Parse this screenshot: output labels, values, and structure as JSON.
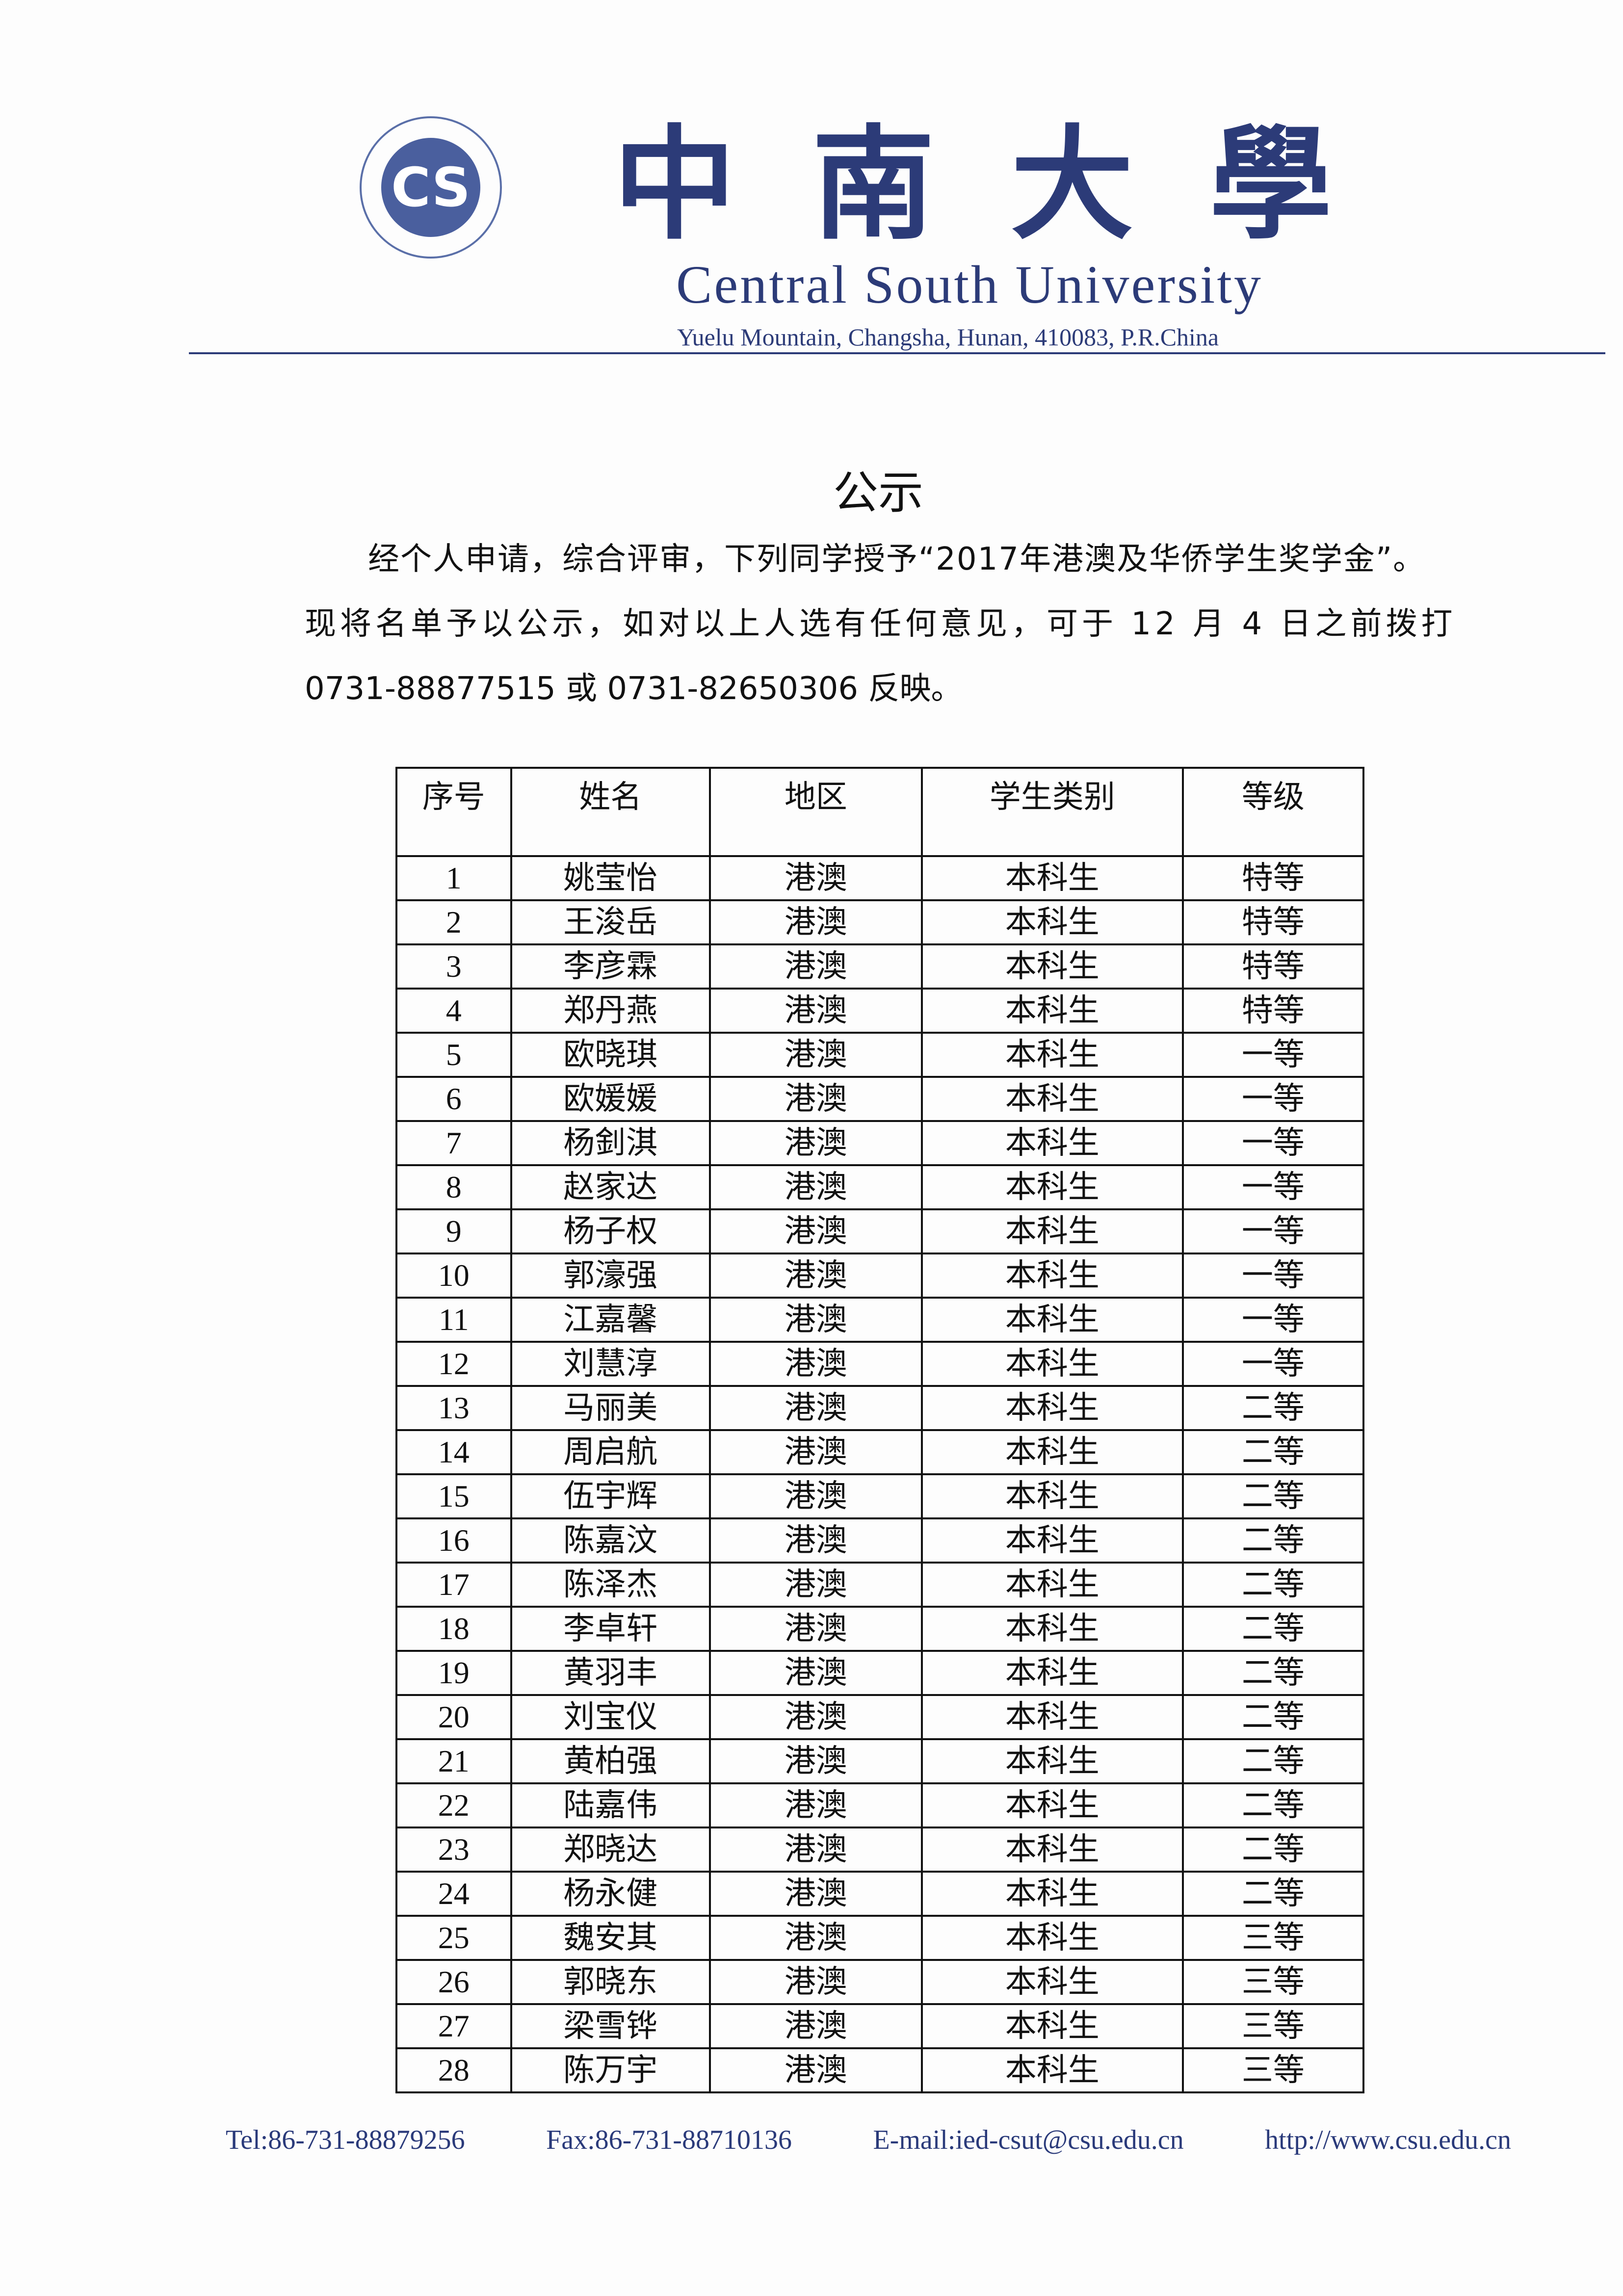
{
  "letterhead": {
    "logo_text": "CENTRAL SOUTH UNIVERSITY",
    "name_cn": "中南大學",
    "name_en": "Central South University",
    "address": "Yuelu Mountain, Changsha, Hunan, 410083, P.R.China"
  },
  "notice": {
    "title": "公示",
    "lines": [
      "经个人申请，综合评审，下列同学授予“2017年港澳及华侨学生奖学金”。",
      "现将名单予以公示，如对以上人选有任何意见，可于 12 月 4 日之前拨打",
      "0731-88877515 或 0731-82650306 反映。"
    ]
  },
  "table": {
    "headers": [
      "序号",
      "姓名",
      "地区",
      "学生类别",
      "等级"
    ],
    "rows": [
      [
        "1",
        "姚莹怡",
        "港澳",
        "本科生",
        "特等"
      ],
      [
        "2",
        "王浚岳",
        "港澳",
        "本科生",
        "特等"
      ],
      [
        "3",
        "李彦霖",
        "港澳",
        "本科生",
        "特等"
      ],
      [
        "4",
        "郑丹燕",
        "港澳",
        "本科生",
        "特等"
      ],
      [
        "5",
        "欧晓琪",
        "港澳",
        "本科生",
        "一等"
      ],
      [
        "6",
        "欧媛媛",
        "港澳",
        "本科生",
        "一等"
      ],
      [
        "7",
        "杨釗淇",
        "港澳",
        "本科生",
        "一等"
      ],
      [
        "8",
        "赵家达",
        "港澳",
        "本科生",
        "一等"
      ],
      [
        "9",
        "杨子权",
        "港澳",
        "本科生",
        "一等"
      ],
      [
        "10",
        "郭濠强",
        "港澳",
        "本科生",
        "一等"
      ],
      [
        "11",
        "江嘉馨",
        "港澳",
        "本科生",
        "一等"
      ],
      [
        "12",
        "刘慧淳",
        "港澳",
        "本科生",
        "一等"
      ],
      [
        "13",
        "马丽美",
        "港澳",
        "本科生",
        "二等"
      ],
      [
        "14",
        "周启航",
        "港澳",
        "本科生",
        "二等"
      ],
      [
        "15",
        "伍宇辉",
        "港澳",
        "本科生",
        "二等"
      ],
      [
        "16",
        "陈嘉汶",
        "港澳",
        "本科生",
        "二等"
      ],
      [
        "17",
        "陈泽杰",
        "港澳",
        "本科生",
        "二等"
      ],
      [
        "18",
        "李卓轩",
        "港澳",
        "本科生",
        "二等"
      ],
      [
        "19",
        "黄羽丰",
        "港澳",
        "本科生",
        "二等"
      ],
      [
        "20",
        "刘宝仪",
        "港澳",
        "本科生",
        "二等"
      ],
      [
        "21",
        "黄柏强",
        "港澳",
        "本科生",
        "二等"
      ],
      [
        "22",
        "陆嘉伟",
        "港澳",
        "本科生",
        "二等"
      ],
      [
        "23",
        "郑晓达",
        "港澳",
        "本科生",
        "二等"
      ],
      [
        "24",
        "杨永健",
        "港澳",
        "本科生",
        "二等"
      ],
      [
        "25",
        "魏安其",
        "港澳",
        "本科生",
        "三等"
      ],
      [
        "26",
        "郭晓东",
        "港澳",
        "本科生",
        "三等"
      ],
      [
        "27",
        "梁雪铧",
        "港澳",
        "本科生",
        "三等"
      ],
      [
        "28",
        "陈万宇",
        "港澳",
        "本科生",
        "三等"
      ]
    ]
  },
  "footer": {
    "tel": "Tel:86-731-88879256",
    "fax": "Fax:86-731-88710136",
    "email": "E-mail:ied-csut@csu.edu.cn",
    "web": "http://www.csu.edu.cn"
  },
  "colors": {
    "letterhead": "#2c3b78",
    "footer": "#2a3a7a"
  }
}
